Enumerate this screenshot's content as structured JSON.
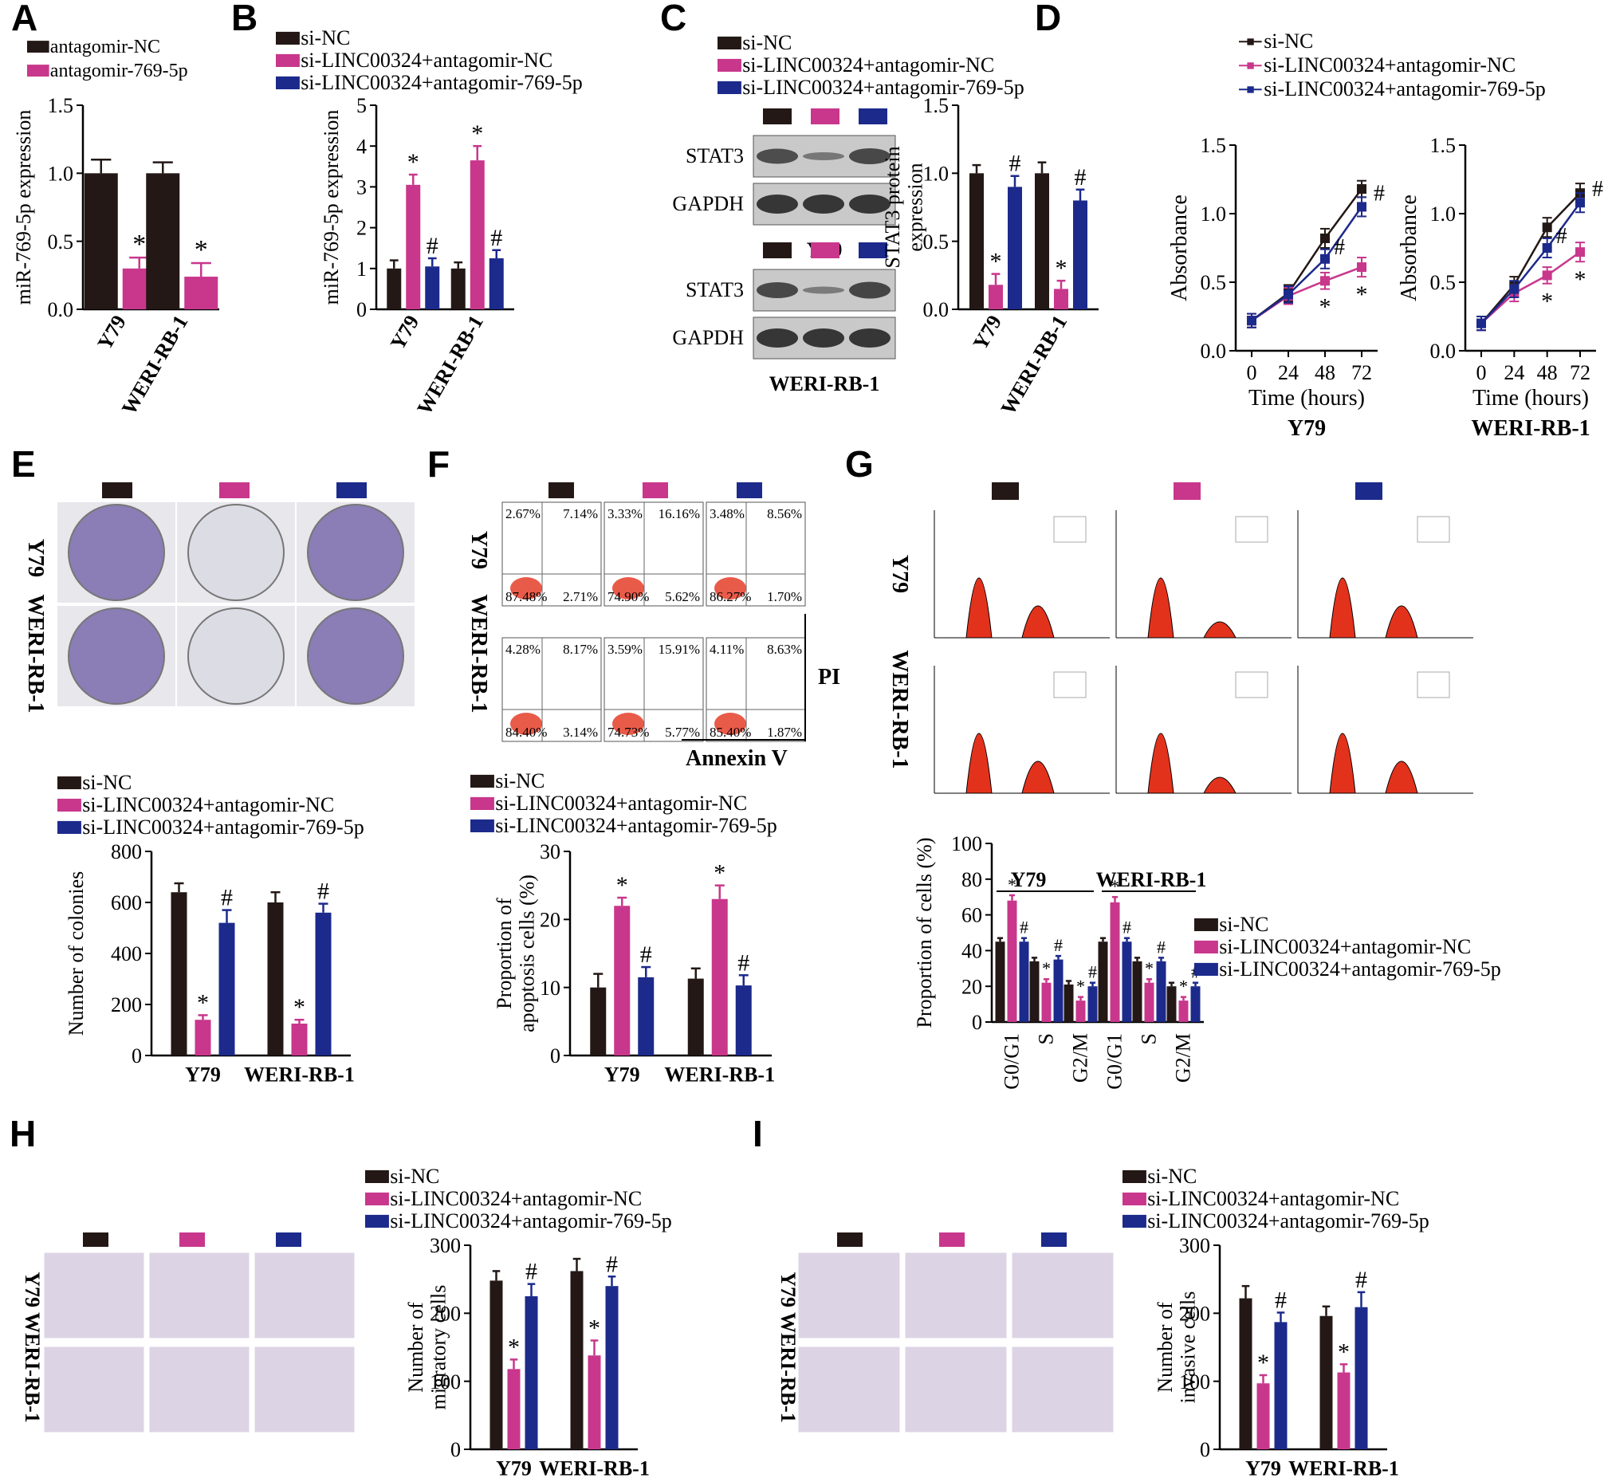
{
  "colors": {
    "black": "#231815",
    "magenta": "#c8378c",
    "navy": "#1c2a8c",
    "red": "#e3321c",
    "purple": "#4b2f8a"
  },
  "legend_sets": {
    "two": [
      "antagomir-NC",
      "antagomir-769-5p"
    ],
    "three": [
      "si-NC",
      "si-LINC00324+antagomir-NC",
      "si-LINC00324+antagomir-769-5p"
    ]
  },
  "panel_letters": [
    "A",
    "B",
    "C",
    "D",
    "E",
    "F",
    "G",
    "H",
    "I"
  ],
  "wb": {
    "bands": [
      "STAT3",
      "GAPDH"
    ],
    "cells": [
      "Y79",
      "WERI-RB-1"
    ]
  },
  "flow": {
    "row_labels": [
      "Y79",
      "WERI-RB-1"
    ],
    "axis_y": "PI",
    "axis_x": "Annexin V",
    "quadrants": [
      [
        [
          "2.67%",
          "7.14%",
          "87.48%",
          "2.71%"
        ],
        [
          "3.33%",
          "16.16%",
          "74.90%",
          "5.62%"
        ],
        [
          "3.48%",
          "8.56%",
          "86.27%",
          "1.70%"
        ]
      ],
      [
        [
          "4.28%",
          "8.17%",
          "84.40%",
          "3.14%"
        ],
        [
          "3.59%",
          "15.91%",
          "74.73%",
          "5.77%"
        ],
        [
          "4.11%",
          "8.63%",
          "85.40%",
          "1.87%"
        ]
      ]
    ]
  },
  "image_row_labels": {
    "E": [
      "Y79",
      "WERI-RB-1"
    ],
    "G": [
      "Y79",
      "WERI-RB-1"
    ],
    "H": [
      "Y79",
      "WERI-RB-1"
    ],
    "I": [
      "Y79",
      "WERI-RB-1"
    ]
  },
  "chart_data": [
    {
      "id": "A",
      "type": "bar",
      "categories": [
        "Y79",
        "WERI-RB-1"
      ],
      "series": [
        {
          "name": "antagomir-NC",
          "values": [
            1.0,
            1.0
          ],
          "err": [
            0.1,
            0.08
          ]
        },
        {
          "name": "antagomir-769-5p",
          "values": [
            0.3,
            0.24
          ],
          "err": [
            0.08,
            0.1
          ]
        }
      ],
      "ylabel": "miR-769-5p expression",
      "ylim": [
        0,
        1.5
      ],
      "yticks": [
        "0.0",
        "0.5",
        "1.0",
        "1.5"
      ],
      "marks": [
        [
          "",
          ""
        ],
        [
          "*",
          "*"
        ]
      ]
    },
    {
      "id": "B",
      "type": "bar",
      "categories": [
        "Y79",
        "WERI-RB-1"
      ],
      "series": [
        {
          "name": "si-NC",
          "values": [
            1.0,
            1.0
          ],
          "err": [
            0.2,
            0.15
          ]
        },
        {
          "name": "si-LINC00324+antagomir-NC",
          "values": [
            3.05,
            3.65
          ],
          "err": [
            0.25,
            0.35
          ]
        },
        {
          "name": "si-LINC00324+antagomir-769-5p",
          "values": [
            1.05,
            1.25
          ],
          "err": [
            0.2,
            0.2
          ]
        }
      ],
      "ylabel": "miR-769-5p expression",
      "ylim": [
        0,
        5
      ],
      "yticks": [
        "0",
        "1",
        "2",
        "3",
        "4",
        "5"
      ],
      "marks": [
        [
          "",
          ""
        ],
        [
          "*",
          "*"
        ],
        [
          "#",
          "#"
        ]
      ]
    },
    {
      "id": "C",
      "type": "bar",
      "categories": [
        "Y79",
        "WERI-RB-1"
      ],
      "series": [
        {
          "name": "si-NC",
          "values": [
            1.0,
            1.0
          ],
          "err": [
            0.06,
            0.08
          ]
        },
        {
          "name": "si-LINC00324+antagomir-NC",
          "values": [
            0.18,
            0.15
          ],
          "err": [
            0.08,
            0.06
          ]
        },
        {
          "name": "si-LINC00324+antagomir-769-5p",
          "values": [
            0.9,
            0.8
          ],
          "err": [
            0.08,
            0.08
          ]
        }
      ],
      "ylabel": "STAT3 protein expression",
      "ylim": [
        0,
        1.5
      ],
      "yticks": [
        "0.0",
        "0.5",
        "1.0",
        "1.5"
      ],
      "marks": [
        [
          "",
          ""
        ],
        [
          "*",
          "*"
        ],
        [
          "#",
          "#"
        ]
      ]
    },
    {
      "id": "D1",
      "type": "line",
      "x": [
        "0",
        "24",
        "48",
        "72"
      ],
      "series": [
        {
          "name": "si-NC",
          "values": [
            0.22,
            0.42,
            0.82,
            1.18
          ],
          "err": [
            0.05,
            0.06,
            0.07,
            0.06
          ]
        },
        {
          "name": "si-LINC00324+antagomir-NC",
          "values": [
            0.22,
            0.4,
            0.51,
            0.61
          ],
          "err": [
            0.05,
            0.06,
            0.06,
            0.07
          ]
        },
        {
          "name": "si-LINC00324+antagomir-769-5p",
          "values": [
            0.22,
            0.41,
            0.67,
            1.05
          ],
          "err": [
            0.05,
            0.06,
            0.07,
            0.07
          ]
        }
      ],
      "xlabel": "Time (hours)",
      "ylabel": "Absorbance",
      "ylim": [
        0,
        1.5
      ],
      "yticks": [
        "0.0",
        "0.5",
        "1.0",
        "1.5"
      ],
      "title": "Y79",
      "marks": [
        "",
        "*",
        "#"
      ]
    },
    {
      "id": "D2",
      "type": "line",
      "x": [
        "0",
        "24",
        "48",
        "72"
      ],
      "series": [
        {
          "name": "si-NC",
          "values": [
            0.2,
            0.48,
            0.9,
            1.15
          ],
          "err": [
            0.05,
            0.06,
            0.07,
            0.07
          ]
        },
        {
          "name": "si-LINC00324+antagomir-NC",
          "values": [
            0.2,
            0.42,
            0.55,
            0.72
          ],
          "err": [
            0.05,
            0.06,
            0.06,
            0.07
          ]
        },
        {
          "name": "si-LINC00324+antagomir-769-5p",
          "values": [
            0.2,
            0.45,
            0.75,
            1.08
          ],
          "err": [
            0.05,
            0.06,
            0.07,
            0.07
          ]
        }
      ],
      "xlabel": "Time (hours)",
      "ylabel": "Absorbance",
      "ylim": [
        0,
        1.5
      ],
      "yticks": [
        "0.0",
        "0.5",
        "1.0",
        "1.5"
      ],
      "title": "WERI-RB-1",
      "marks": [
        "",
        "*",
        "#"
      ]
    },
    {
      "id": "E",
      "type": "bar",
      "categories": [
        "Y79",
        "WERI-RB-1"
      ],
      "series": [
        {
          "name": "si-NC",
          "values": [
            640,
            600
          ],
          "err": [
            35,
            40
          ]
        },
        {
          "name": "si-LINC00324+antagomir-NC",
          "values": [
            140,
            125
          ],
          "err": [
            18,
            15
          ]
        },
        {
          "name": "si-LINC00324+antagomir-769-5p",
          "values": [
            520,
            560
          ],
          "err": [
            50,
            35
          ]
        }
      ],
      "ylabel": "Number of colonies",
      "ylim": [
        0,
        800
      ],
      "yticks": [
        "0",
        "200",
        "400",
        "600",
        "800"
      ],
      "marks": [
        [
          "",
          ""
        ],
        [
          "*",
          "*"
        ],
        [
          "#",
          "#"
        ]
      ]
    },
    {
      "id": "F",
      "type": "bar",
      "categories": [
        "Y79",
        "WERI-RB-1"
      ],
      "series": [
        {
          "name": "si-NC",
          "values": [
            10,
            11.3
          ],
          "err": [
            2,
            1.5
          ]
        },
        {
          "name": "si-LINC00324+antagomir-NC",
          "values": [
            22,
            23
          ],
          "err": [
            1.2,
            2
          ]
        },
        {
          "name": "si-LINC00324+antagomir-769-5p",
          "values": [
            11.5,
            10.3
          ],
          "err": [
            1.5,
            1.5
          ]
        }
      ],
      "ylabel": "Proportion of apoptosis cells (%)",
      "ylim": [
        0,
        30
      ],
      "yticks": [
        "0",
        "10",
        "20",
        "30"
      ],
      "marks": [
        [
          "",
          ""
        ],
        [
          "*",
          "*"
        ],
        [
          "#",
          "#"
        ]
      ]
    },
    {
      "id": "G",
      "type": "bar",
      "categories": [
        "G0/G1",
        "S",
        "G2/M",
        "G0/G1",
        "S",
        "G2/M"
      ],
      "groups": [
        "Y79",
        "WERI-RB-1"
      ],
      "series": [
        {
          "name": "si-NC",
          "values": [
            45,
            34,
            21,
            45,
            34,
            20
          ],
          "err": [
            2,
            2,
            2,
            2,
            2,
            2
          ]
        },
        {
          "name": "si-LINC00324+antagomir-NC",
          "values": [
            68,
            22,
            12,
            67,
            22,
            12
          ],
          "err": [
            3,
            2,
            2,
            3,
            2,
            2
          ]
        },
        {
          "name": "si-LINC00324+antagomir-769-5p",
          "values": [
            45,
            35,
            20,
            45,
            34,
            20
          ],
          "err": [
            2,
            2,
            2,
            2,
            2,
            2
          ]
        }
      ],
      "ylabel": "Proportion of cells (%)",
      "ylim": [
        0,
        100
      ],
      "yticks": [
        "0",
        "20",
        "40",
        "60",
        "80",
        "100"
      ],
      "marks": [
        [
          "",
          "",
          "",
          "",
          "",
          ""
        ],
        [
          "*",
          "*",
          "*",
          "*",
          "*",
          "*"
        ],
        [
          "#",
          "#",
          "#",
          "#",
          "#",
          "#"
        ]
      ]
    },
    {
      "id": "H",
      "type": "bar",
      "categories": [
        "Y79",
        "WERI-RB-1"
      ],
      "series": [
        {
          "name": "si-NC",
          "values": [
            248,
            262
          ],
          "err": [
            14,
            18
          ]
        },
        {
          "name": "si-LINC00324+antagomir-NC",
          "values": [
            118,
            138
          ],
          "err": [
            14,
            22
          ]
        },
        {
          "name": "si-LINC00324+antagomir-769-5p",
          "values": [
            225,
            240
          ],
          "err": [
            18,
            14
          ]
        }
      ],
      "ylabel": "Number of migratory cells",
      "ylim": [
        0,
        300
      ],
      "yticks": [
        "0",
        "100",
        "200",
        "300"
      ],
      "marks": [
        [
          "",
          ""
        ],
        [
          "*",
          "*"
        ],
        [
          "#",
          "#"
        ]
      ]
    },
    {
      "id": "I",
      "type": "bar",
      "categories": [
        "Y79",
        "WERI-RB-1"
      ],
      "series": [
        {
          "name": "si-NC",
          "values": [
            222,
            196
          ],
          "err": [
            18,
            14
          ]
        },
        {
          "name": "si-LINC00324+antagomir-NC",
          "values": [
            97,
            113
          ],
          "err": [
            12,
            12
          ]
        },
        {
          "name": "si-LINC00324+antagomir-769-5p",
          "values": [
            187,
            209
          ],
          "err": [
            14,
            22
          ]
        }
      ],
      "ylabel": "Number of invasive cells",
      "ylim": [
        0,
        300
      ],
      "yticks": [
        "0",
        "100",
        "200",
        "300"
      ],
      "marks": [
        [
          "",
          ""
        ],
        [
          "*",
          "*"
        ],
        [
          "#",
          "#"
        ]
      ]
    }
  ]
}
